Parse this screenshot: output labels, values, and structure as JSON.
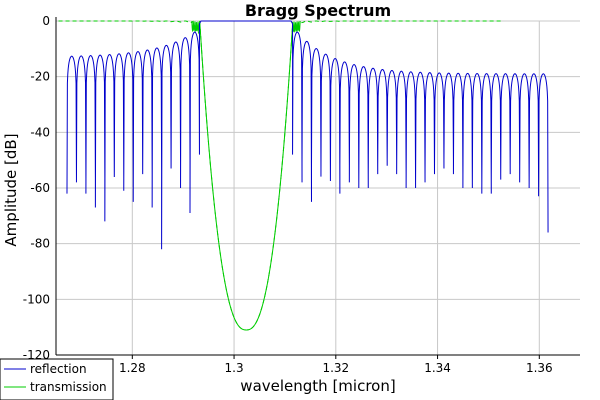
{
  "chart_data": {
    "type": "line",
    "title": "Bragg Spectrum",
    "xlabel": "wavelength [micron]",
    "ylabel": "Amplitude [dB]",
    "xlim": [
      1.265,
      1.368
    ],
    "ylim": [
      -120,
      0
    ],
    "x_ticks": [
      1.28,
      1.3,
      1.32,
      1.34,
      1.36
    ],
    "x_tick_labels": [
      "1.28",
      "1.3",
      "1.32",
      "1.34",
      "1.36"
    ],
    "y_ticks": [
      0,
      -20,
      -40,
      -60,
      -80,
      -100,
      -120
    ],
    "y_tick_labels": [
      "0",
      "-20",
      "-40",
      "-60",
      "-80",
      "-100",
      "-120"
    ],
    "grid": true,
    "legend_position": "bottom-left",
    "stopband": [
      1.2932,
      1.3115
    ],
    "stopband_center": 1.3024,
    "sidelobe_spacing": 0.00186,
    "series": [
      {
        "name": "reflection",
        "color": "#0000cc",
        "x_range": [
          1.2655,
          1.3635
        ],
        "stopband_level": 0,
        "sidelobe_peak_near_band": -4,
        "sidelobe_peak_far_left": -13,
        "sidelobe_peak_far_right": -19,
        "null_depths": [
          -62,
          -58,
          -62,
          -67,
          -72,
          -56,
          -61,
          -65,
          -55,
          -67,
          -82,
          -53,
          -60,
          -69,
          -58,
          -65,
          -53,
          -57,
          -62,
          -52,
          -58,
          -60,
          -55,
          -52,
          -50,
          -55,
          -60,
          -58,
          -55,
          -53,
          -50,
          -55,
          -60,
          -58,
          -62,
          -57,
          -55,
          -52,
          -58,
          -60,
          -76,
          -55,
          -58,
          -52,
          -56,
          -74,
          -55,
          -58,
          -60,
          -52,
          -56,
          -72,
          -58,
          -55,
          -60,
          -57,
          -65,
          -55,
          -58,
          -70,
          -55,
          -58,
          -60,
          -52,
          -68,
          -72,
          -55,
          -58,
          -62,
          -60,
          -45,
          -50,
          -42
        ]
      },
      {
        "name": "transmission",
        "color": "#00cc00",
        "x_range": [
          1.2655,
          1.3525
        ],
        "passband_level": 0,
        "min_value": -111,
        "min_at": 1.302
      }
    ]
  }
}
